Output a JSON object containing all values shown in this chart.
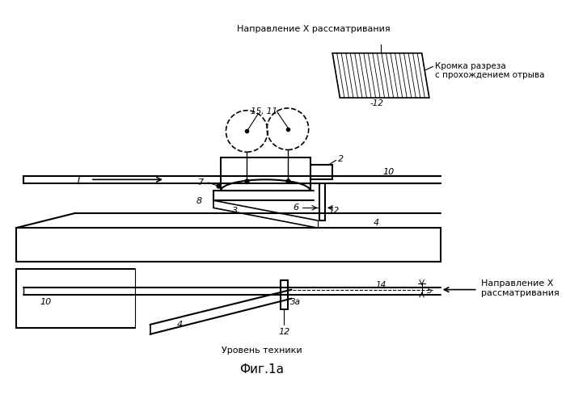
{
  "title": "Фиг.1а",
  "bg_color": "#ffffff",
  "line_color": "#000000",
  "text_top_label": "Направление X рассматривания",
  "text_inset_label1": "Кромка разреза",
  "text_inset_label2": "с прохождением отрыва",
  "text_inset_num": "-12",
  "text_bottom_label": "Уровень техники",
  "text_right_label1": "Направление X",
  "text_right_label2": "рассматривания"
}
